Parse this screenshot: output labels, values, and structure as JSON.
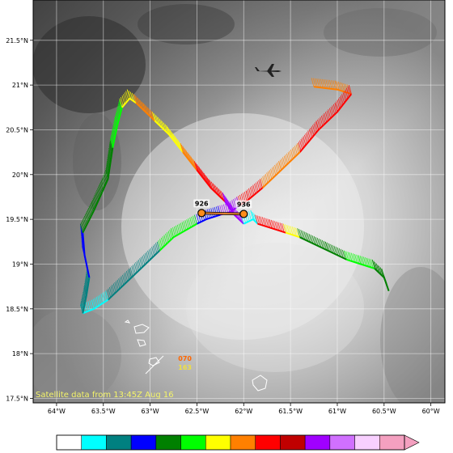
{
  "map": {
    "lon_range": [
      -64.25,
      -59.85
    ],
    "lat_range": [
      17.45,
      21.95
    ],
    "lon_ticks": [
      {
        "value": -64.0,
        "label": "64°W"
      },
      {
        "value": -63.5,
        "label": "63.5°W"
      },
      {
        "value": -63.0,
        "label": "63°W"
      },
      {
        "value": -62.5,
        "label": "62.5°W"
      },
      {
        "value": -62.0,
        "label": "62°W"
      },
      {
        "value": -61.5,
        "label": "61.5°W"
      },
      {
        "value": -61.0,
        "label": "61°W"
      },
      {
        "value": -60.5,
        "label": "60.5°W"
      },
      {
        "value": -60.0,
        "label": "60°W"
      }
    ],
    "lat_ticks": [
      {
        "value": 17.5,
        "label": "17.5°N"
      },
      {
        "value": 18.0,
        "label": "18°N"
      },
      {
        "value": 18.5,
        "label": "18.5°N"
      },
      {
        "value": 19.0,
        "label": "19°N"
      },
      {
        "value": 19.5,
        "label": "19.5°N"
      },
      {
        "value": 20.0,
        "label": "20°N"
      },
      {
        "value": 20.5,
        "label": "20.5°N"
      },
      {
        "value": 21.0,
        "label": "21°N"
      },
      {
        "value": 21.5,
        "label": "21.5°N"
      }
    ],
    "grid": true,
    "background": "grayscale satellite imagery",
    "caption": "Satellite data from 13:45Z Aug 16"
  },
  "colorbar": {
    "colors": [
      "#ffffff",
      "#00ffff",
      "#008080",
      "#0000ff",
      "#008000",
      "#00ff00",
      "#ffff00",
      "#ff8000",
      "#ff0000",
      "#c00000",
      "#a000ff",
      "#d070ff",
      "#f8d0ff",
      "#f4a0c0"
    ],
    "extend": "max"
  },
  "flight_track": {
    "segments": [
      {
        "color": "#ff8000",
        "points": [
          [
            -60.85,
            20.9
          ],
          [
            -61.0,
            20.95
          ],
          [
            -61.25,
            20.98
          ]
        ]
      },
      {
        "color": "#ff0000",
        "points": [
          [
            -60.85,
            20.9
          ],
          [
            -61.0,
            20.7
          ],
          [
            -61.2,
            20.5
          ],
          [
            -61.4,
            20.25
          ]
        ]
      },
      {
        "color": "#ff8000",
        "points": [
          [
            -61.4,
            20.25
          ],
          [
            -61.6,
            20.05
          ],
          [
            -61.8,
            19.85
          ]
        ]
      },
      {
        "color": "#ff0000",
        "points": [
          [
            -61.8,
            19.85
          ],
          [
            -61.95,
            19.72
          ],
          [
            -62.05,
            19.65
          ]
        ]
      },
      {
        "color": "#a000ff",
        "points": [
          [
            -62.05,
            19.65
          ],
          [
            -62.15,
            19.58
          ],
          [
            -62.25,
            19.55
          ]
        ]
      },
      {
        "color": "#0000ff",
        "points": [
          [
            -62.25,
            19.55
          ],
          [
            -62.4,
            19.5
          ],
          [
            -62.5,
            19.45
          ]
        ]
      },
      {
        "color": "#00ff00",
        "points": [
          [
            -62.5,
            19.45
          ],
          [
            -62.75,
            19.3
          ],
          [
            -62.9,
            19.15
          ]
        ]
      },
      {
        "color": "#008080",
        "points": [
          [
            -62.9,
            19.15
          ],
          [
            -63.2,
            18.85
          ],
          [
            -63.45,
            18.6
          ]
        ]
      },
      {
        "color": "#00ffff",
        "points": [
          [
            -63.45,
            18.6
          ],
          [
            -63.6,
            18.5
          ],
          [
            -63.72,
            18.45
          ]
        ]
      },
      {
        "color": "#008080",
        "points": [
          [
            -63.72,
            18.45
          ],
          [
            -63.68,
            18.65
          ],
          [
            -63.65,
            18.85
          ]
        ]
      },
      {
        "color": "#0000ff",
        "points": [
          [
            -63.65,
            18.85
          ],
          [
            -63.7,
            19.1
          ],
          [
            -63.72,
            19.35
          ]
        ]
      },
      {
        "color": "#008000",
        "points": [
          [
            -63.72,
            19.35
          ],
          [
            -63.6,
            19.6
          ],
          [
            -63.45,
            19.95
          ],
          [
            -63.4,
            20.3
          ]
        ]
      },
      {
        "color": "#00ff00",
        "points": [
          [
            -63.4,
            20.3
          ],
          [
            -63.35,
            20.55
          ],
          [
            -63.3,
            20.75
          ]
        ]
      },
      {
        "color": "#ffff00",
        "points": [
          [
            -63.3,
            20.75
          ],
          [
            -63.22,
            20.85
          ],
          [
            -63.15,
            20.8
          ]
        ]
      },
      {
        "color": "#ff8000",
        "points": [
          [
            -63.15,
            20.8
          ],
          [
            -63.05,
            20.7
          ],
          [
            -62.95,
            20.6
          ]
        ]
      },
      {
        "color": "#ffff00",
        "points": [
          [
            -62.95,
            20.6
          ],
          [
            -62.8,
            20.45
          ],
          [
            -62.65,
            20.25
          ]
        ]
      },
      {
        "color": "#ff8000",
        "points": [
          [
            -62.65,
            20.25
          ],
          [
            -62.5,
            20.05
          ]
        ]
      },
      {
        "color": "#ff0000",
        "points": [
          [
            -62.5,
            20.05
          ],
          [
            -62.35,
            19.85
          ],
          [
            -62.2,
            19.7
          ]
        ]
      },
      {
        "color": "#a000ff",
        "points": [
          [
            -62.2,
            19.7
          ],
          [
            -62.1,
            19.55
          ],
          [
            -62.0,
            19.45
          ]
        ]
      },
      {
        "color": "#00ffff",
        "points": [
          [
            -62.0,
            19.45
          ],
          [
            -61.9,
            19.5
          ],
          [
            -61.85,
            19.45
          ]
        ]
      },
      {
        "color": "#ff0000",
        "points": [
          [
            -61.85,
            19.45
          ],
          [
            -61.7,
            19.4
          ],
          [
            -61.55,
            19.35
          ]
        ]
      },
      {
        "color": "#ffff00",
        "points": [
          [
            -61.55,
            19.35
          ],
          [
            -61.4,
            19.3
          ]
        ]
      },
      {
        "color": "#008000",
        "points": [
          [
            -61.4,
            19.3
          ],
          [
            -61.1,
            19.15
          ],
          [
            -60.9,
            19.05
          ]
        ]
      },
      {
        "color": "#00ff00",
        "points": [
          [
            -60.9,
            19.05
          ],
          [
            -60.75,
            19.0
          ],
          [
            -60.6,
            18.95
          ]
        ]
      },
      {
        "color": "#008000",
        "points": [
          [
            -60.6,
            18.95
          ],
          [
            -60.5,
            18.85
          ],
          [
            -60.45,
            18.7
          ]
        ]
      }
    ]
  },
  "center_fixes": [
    {
      "label": "926",
      "lon": -62.45,
      "lat": 19.57
    },
    {
      "label": "936",
      "lon": -62.0,
      "lat": 19.56
    }
  ],
  "station_labels": [
    {
      "text": "070",
      "color": "#ff6600",
      "lon": -62.7,
      "lat": 17.92
    },
    {
      "text": "163",
      "color": "#f0e040",
      "lon": -62.7,
      "lat": 17.82
    }
  ],
  "aircraft_icon": "aircraft-icon",
  "island_outlines": "coastline outlines"
}
